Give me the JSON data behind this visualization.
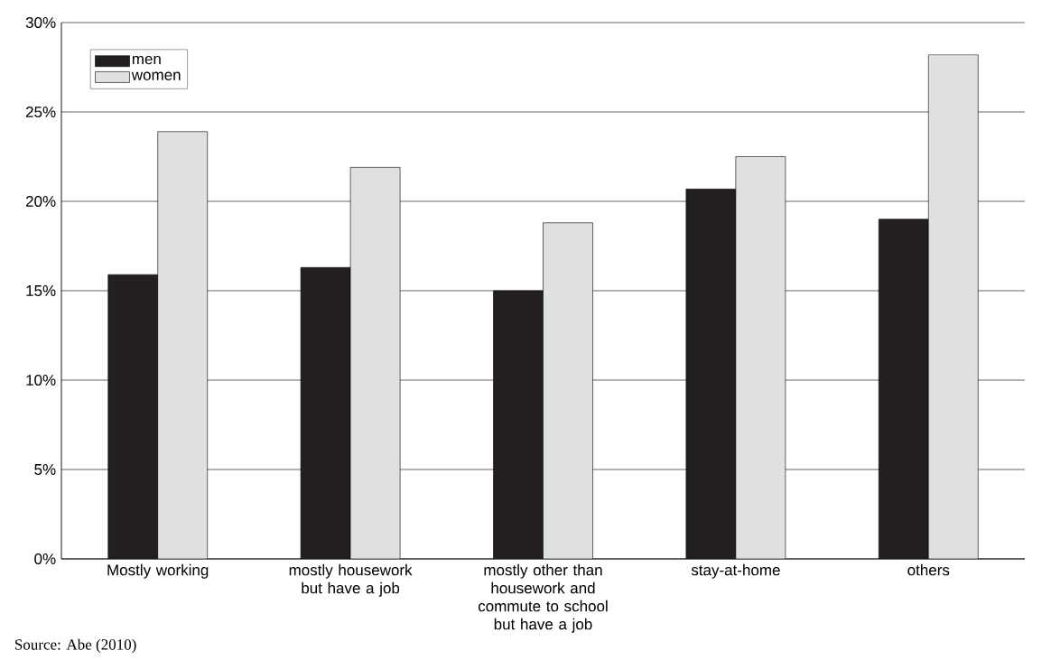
{
  "chart_data": {
    "type": "bar",
    "categories": [
      "Mostly working",
      "mostly housework but have a job",
      "mostly other than housework and commute to school but have a job",
      "stay-at-home",
      "others"
    ],
    "series": [
      {
        "name": "men",
        "color": "#231f20",
        "values": [
          15.9,
          16.3,
          15.0,
          20.7,
          19.0
        ]
      },
      {
        "name": "women",
        "color": "#dfe0e2",
        "values": [
          23.9,
          21.9,
          18.8,
          22.5,
          28.2
        ]
      }
    ],
    "ylim": [
      0,
      30
    ],
    "yticks": [
      {
        "value": 0,
        "label": "0%"
      },
      {
        "value": 5,
        "label": "5%"
      },
      {
        "value": 10,
        "label": "10%"
      },
      {
        "value": 15,
        "label": "15%"
      },
      {
        "value": 20,
        "label": "20%"
      },
      {
        "value": 25,
        "label": "25%"
      },
      {
        "value": 30,
        "label": "30%"
      }
    ],
    "grid": "y",
    "legend": "top left",
    "annotations": [
      "Source: Abe (2010)"
    ]
  }
}
